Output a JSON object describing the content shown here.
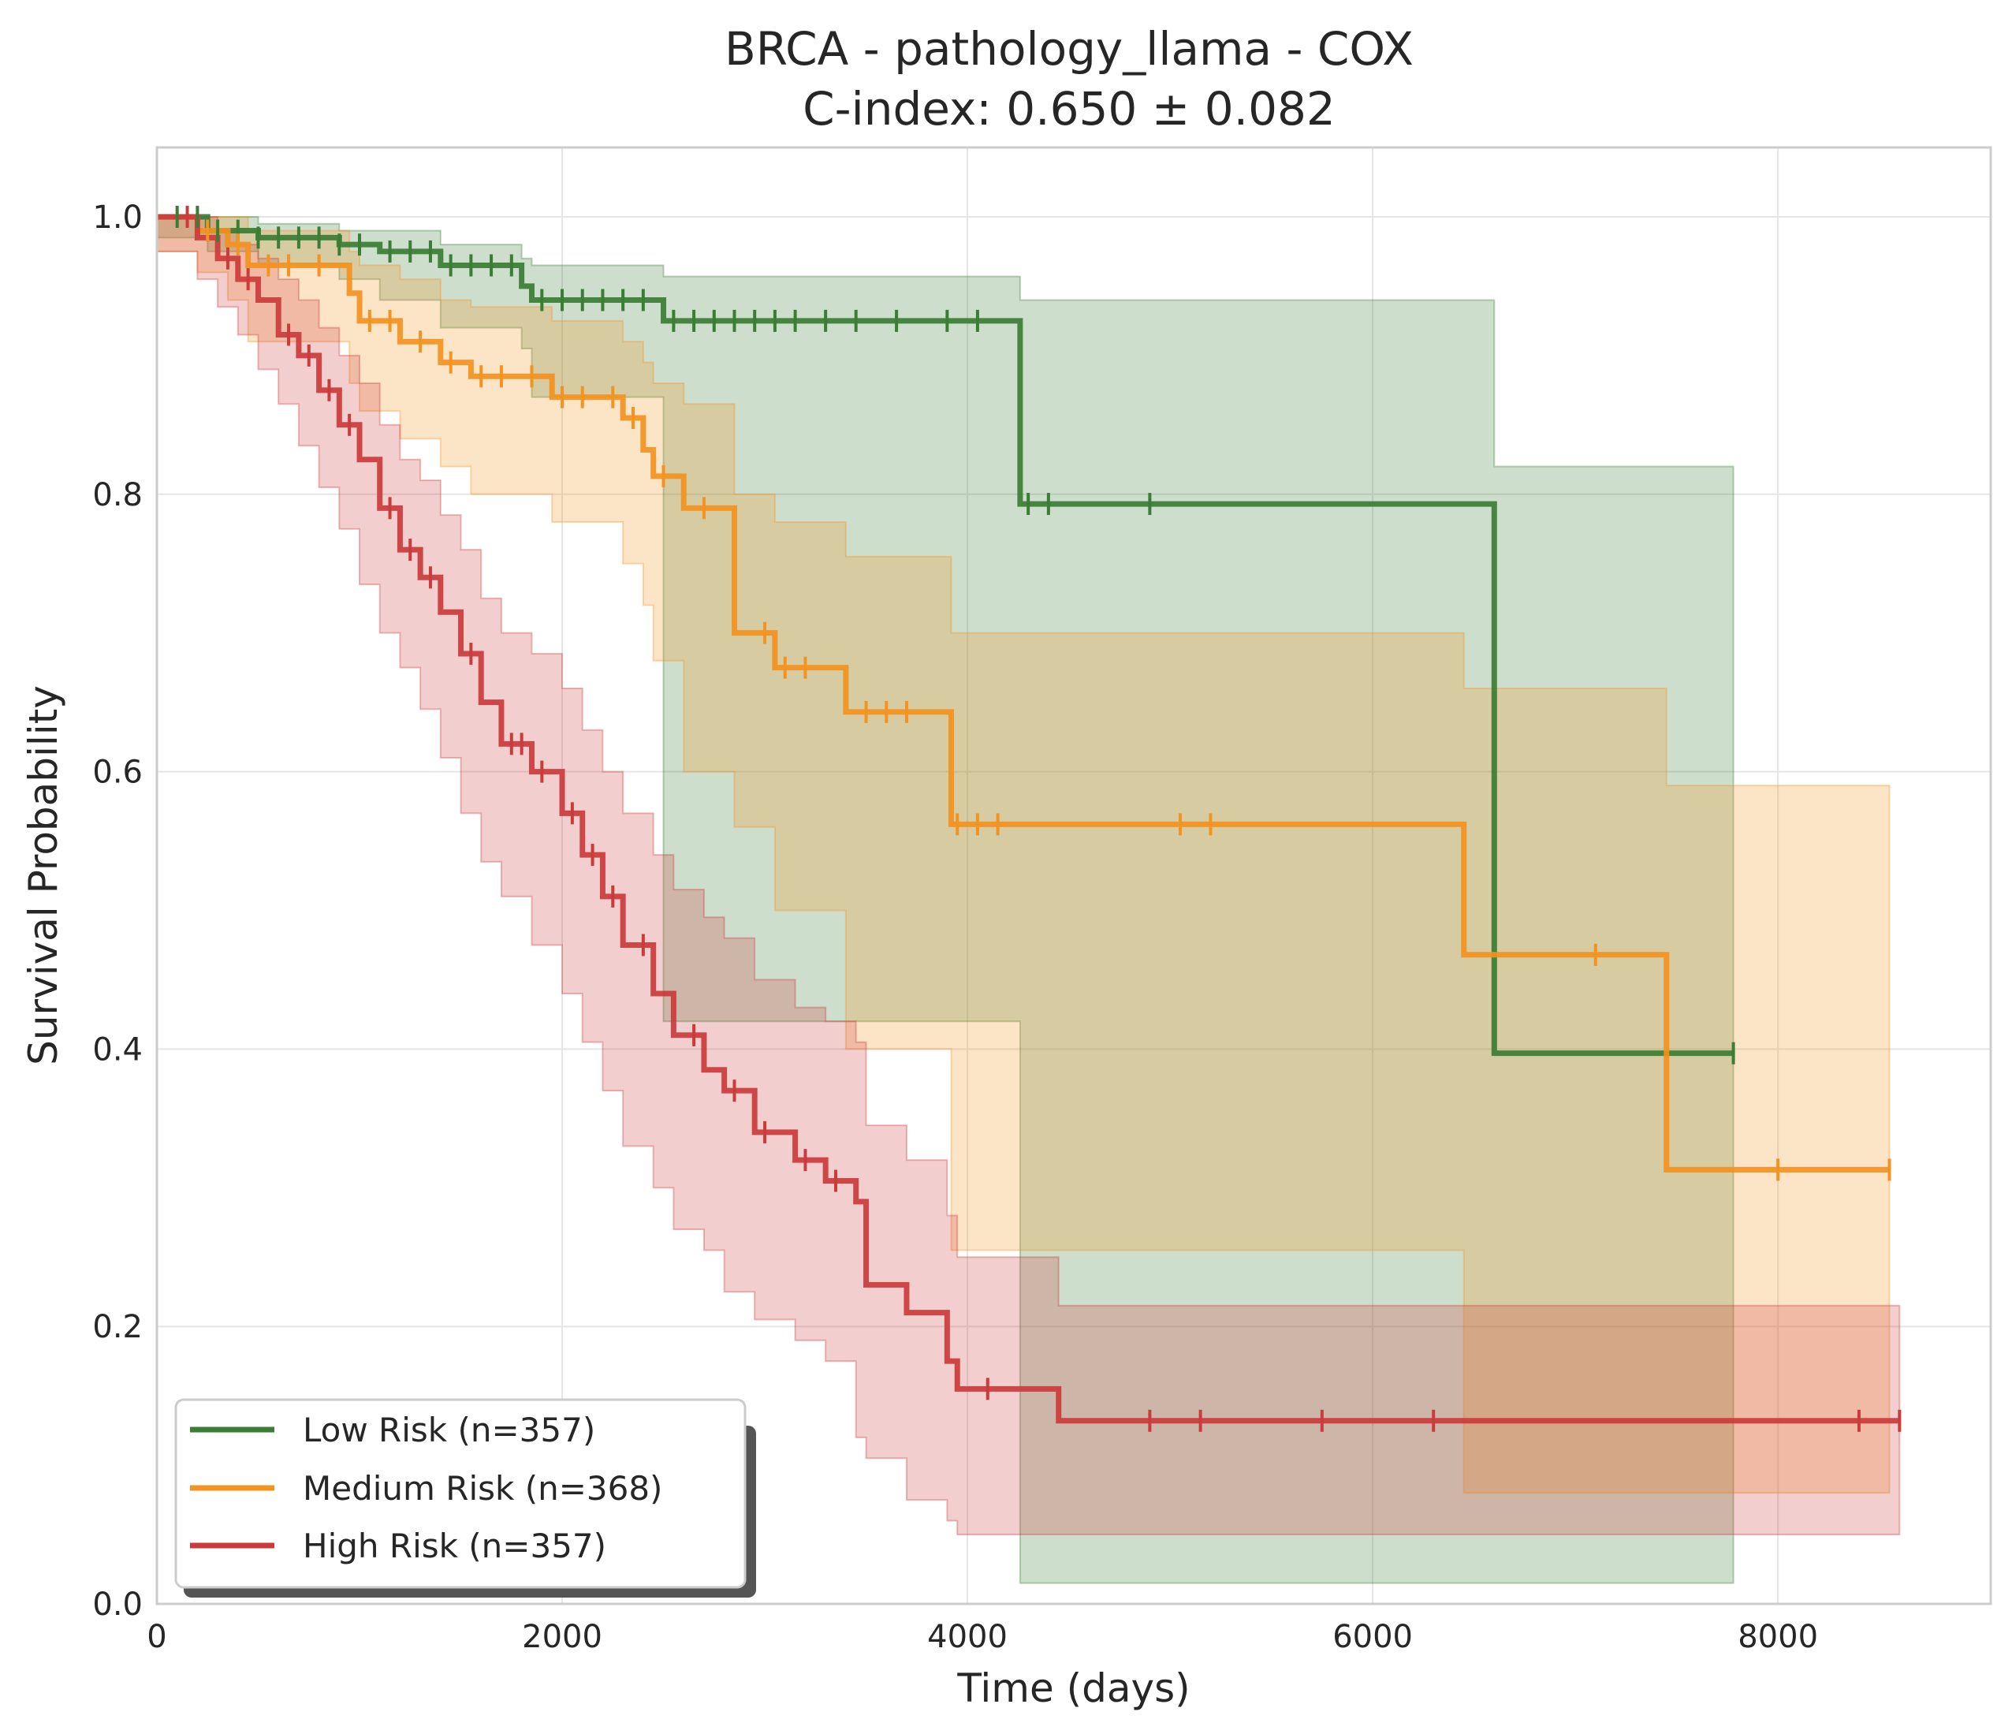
{
  "chart_data": {
    "type": "line",
    "subtype": "kaplan-meier",
    "title": "BRCA - pathology_llama - COX",
    "subtitle": "C-index: 0.650 ± 0.082",
    "xlabel": "Time (days)",
    "ylabel": "Survival Probability",
    "xlim": [
      0,
      9050
    ],
    "ylim": [
      0,
      1.05
    ],
    "xticks": [
      0,
      2000,
      4000,
      6000,
      8000
    ],
    "xtick_labels": [
      "0",
      "2000",
      "4000",
      "6000",
      "8000"
    ],
    "yticks": [
      0.0,
      0.2,
      0.4,
      0.6,
      0.8,
      1.0
    ],
    "ytick_labels": [
      "0.0",
      "0.2",
      "0.4",
      "0.6",
      "0.8",
      "1.0"
    ],
    "grid": true,
    "legend_position": "lower-left",
    "series": [
      {
        "name": "Low Risk (n=357)",
        "color": "#3a7d34",
        "steps": [
          [
            0,
            1.0
          ],
          [
            250,
            0.99
          ],
          [
            500,
            0.985
          ],
          [
            900,
            0.98
          ],
          [
            1100,
            0.975
          ],
          [
            1400,
            0.965
          ],
          [
            1800,
            0.95
          ],
          [
            1850,
            0.94
          ],
          [
            2500,
            0.925
          ],
          [
            4260,
            0.793
          ],
          [
            6600,
            0.397
          ],
          [
            7780,
            0.397
          ]
        ],
        "ci_lower": [
          [
            0,
            1.0
          ],
          [
            250,
            0.985
          ],
          [
            500,
            0.975
          ],
          [
            900,
            0.965
          ],
          [
            1100,
            0.955
          ],
          [
            1400,
            0.94
          ],
          [
            1800,
            0.92
          ],
          [
            1850,
            0.905
          ],
          [
            2500,
            0.87
          ],
          [
            4260,
            0.42
          ],
          [
            6600,
            0.015
          ],
          [
            7780,
            0.015
          ]
        ],
        "ci_upper": [
          [
            0,
            1.0
          ],
          [
            250,
            1.0
          ],
          [
            500,
            0.995
          ],
          [
            900,
            0.99
          ],
          [
            1100,
            0.99
          ],
          [
            1400,
            0.98
          ],
          [
            1800,
            0.97
          ],
          [
            1850,
            0.965
          ],
          [
            2500,
            0.957
          ],
          [
            4260,
            0.94
          ],
          [
            6600,
            0.82
          ],
          [
            7780,
            0.82
          ]
        ],
        "censor_times": [
          100,
          200,
          300,
          400,
          500,
          600,
          700,
          800,
          900,
          1000,
          1150,
          1250,
          1350,
          1450,
          1550,
          1650,
          1750,
          1900,
          2000,
          2100,
          2200,
          2300,
          2400,
          2550,
          2650,
          2750,
          2850,
          2950,
          3050,
          3150,
          3300,
          3450,
          3650,
          3900,
          4050,
          4300,
          4400,
          4900,
          7780
        ]
      },
      {
        "name": "Medium Risk (n=368)",
        "color": "#f39320",
        "steps": [
          [
            0,
            1.0
          ],
          [
            200,
            0.99
          ],
          [
            350,
            0.98
          ],
          [
            450,
            0.965
          ],
          [
            950,
            0.945
          ],
          [
            1000,
            0.925
          ],
          [
            1200,
            0.91
          ],
          [
            1400,
            0.895
          ],
          [
            1550,
            0.885
          ],
          [
            1950,
            0.87
          ],
          [
            2300,
            0.855
          ],
          [
            2400,
            0.832
          ],
          [
            2450,
            0.813
          ],
          [
            2600,
            0.79
          ],
          [
            2850,
            0.7
          ],
          [
            3050,
            0.675
          ],
          [
            3400,
            0.643
          ],
          [
            3920,
            0.562
          ],
          [
            6450,
            0.468
          ],
          [
            7450,
            0.313
          ],
          [
            8550,
            0.313
          ]
        ],
        "ci_lower": [
          [
            0,
            1.0
          ],
          [
            200,
            0.975
          ],
          [
            350,
            0.96
          ],
          [
            450,
            0.94
          ],
          [
            950,
            0.91
          ],
          [
            1000,
            0.88
          ],
          [
            1200,
            0.86
          ],
          [
            1400,
            0.84
          ],
          [
            1550,
            0.82
          ],
          [
            1950,
            0.8
          ],
          [
            2300,
            0.78
          ],
          [
            2400,
            0.75
          ],
          [
            2450,
            0.72
          ],
          [
            2600,
            0.68
          ],
          [
            2850,
            0.6
          ],
          [
            3050,
            0.56
          ],
          [
            3400,
            0.5
          ],
          [
            3920,
            0.4
          ],
          [
            6450,
            0.255
          ],
          [
            7450,
            0.08
          ],
          [
            8550,
            0.08
          ]
        ],
        "ci_upper": [
          [
            0,
            1.0
          ],
          [
            200,
            1.0
          ],
          [
            350,
            1.0
          ],
          [
            450,
            0.99
          ],
          [
            950,
            0.975
          ],
          [
            1000,
            0.965
          ],
          [
            1200,
            0.955
          ],
          [
            1400,
            0.94
          ],
          [
            1550,
            0.935
          ],
          [
            1950,
            0.925
          ],
          [
            2300,
            0.91
          ],
          [
            2400,
            0.895
          ],
          [
            2450,
            0.88
          ],
          [
            2600,
            0.865
          ],
          [
            2850,
            0.8
          ],
          [
            3050,
            0.78
          ],
          [
            3400,
            0.755
          ],
          [
            3920,
            0.7
          ],
          [
            6450,
            0.66
          ],
          [
            7450,
            0.59
          ],
          [
            8550,
            0.59
          ]
        ],
        "censor_times": [
          250,
          400,
          550,
          650,
          800,
          1050,
          1150,
          1300,
          1450,
          1600,
          1700,
          1850,
          2000,
          2100,
          2250,
          2350,
          2500,
          2700,
          3000,
          3100,
          3200,
          3500,
          3600,
          3700,
          3950,
          4050,
          4150,
          5050,
          5200,
          7100,
          8000,
          8550
        ]
      },
      {
        "name": "High Risk (n=357)",
        "color": "#cc3b3b",
        "steps": [
          [
            0,
            1.0
          ],
          [
            200,
            0.985
          ],
          [
            300,
            0.97
          ],
          [
            400,
            0.955
          ],
          [
            500,
            0.94
          ],
          [
            600,
            0.915
          ],
          [
            700,
            0.9
          ],
          [
            800,
            0.875
          ],
          [
            900,
            0.85
          ],
          [
            1000,
            0.825
          ],
          [
            1100,
            0.79
          ],
          [
            1200,
            0.76
          ],
          [
            1300,
            0.74
          ],
          [
            1400,
            0.715
          ],
          [
            1500,
            0.685
          ],
          [
            1600,
            0.65
          ],
          [
            1700,
            0.62
          ],
          [
            1850,
            0.6
          ],
          [
            2000,
            0.57
          ],
          [
            2100,
            0.54
          ],
          [
            2200,
            0.51
          ],
          [
            2300,
            0.475
          ],
          [
            2450,
            0.44
          ],
          [
            2550,
            0.41
          ],
          [
            2700,
            0.385
          ],
          [
            2800,
            0.37
          ],
          [
            2950,
            0.34
          ],
          [
            3150,
            0.32
          ],
          [
            3300,
            0.305
          ],
          [
            3450,
            0.29
          ],
          [
            3500,
            0.23
          ],
          [
            3700,
            0.21
          ],
          [
            3900,
            0.175
          ],
          [
            3950,
            0.155
          ],
          [
            4450,
            0.132
          ],
          [
            8600,
            0.132
          ]
        ],
        "ci_lower": [
          [
            0,
            1.0
          ],
          [
            200,
            0.975
          ],
          [
            300,
            0.955
          ],
          [
            400,
            0.935
          ],
          [
            500,
            0.915
          ],
          [
            600,
            0.89
          ],
          [
            700,
            0.865
          ],
          [
            800,
            0.835
          ],
          [
            900,
            0.805
          ],
          [
            1000,
            0.775
          ],
          [
            1100,
            0.735
          ],
          [
            1200,
            0.7
          ],
          [
            1300,
            0.675
          ],
          [
            1400,
            0.645
          ],
          [
            1500,
            0.61
          ],
          [
            1600,
            0.57
          ],
          [
            1700,
            0.535
          ],
          [
            1850,
            0.51
          ],
          [
            2000,
            0.475
          ],
          [
            2100,
            0.44
          ],
          [
            2200,
            0.405
          ],
          [
            2300,
            0.37
          ],
          [
            2450,
            0.33
          ],
          [
            2550,
            0.3
          ],
          [
            2700,
            0.27
          ],
          [
            2800,
            0.255
          ],
          [
            2950,
            0.225
          ],
          [
            3150,
            0.205
          ],
          [
            3300,
            0.19
          ],
          [
            3450,
            0.175
          ],
          [
            3500,
            0.12
          ],
          [
            3700,
            0.105
          ],
          [
            3900,
            0.075
          ],
          [
            3950,
            0.06
          ],
          [
            4450,
            0.05
          ],
          [
            8600,
            0.05
          ]
        ],
        "ci_upper": [
          [
            0,
            1.0
          ],
          [
            200,
            1.0
          ],
          [
            300,
            0.99
          ],
          [
            400,
            0.98
          ],
          [
            500,
            0.97
          ],
          [
            600,
            0.955
          ],
          [
            700,
            0.94
          ],
          [
            800,
            0.92
          ],
          [
            900,
            0.9
          ],
          [
            1000,
            0.88
          ],
          [
            1100,
            0.85
          ],
          [
            1200,
            0.825
          ],
          [
            1300,
            0.81
          ],
          [
            1400,
            0.785
          ],
          [
            1500,
            0.76
          ],
          [
            1600,
            0.725
          ],
          [
            1700,
            0.7
          ],
          [
            1850,
            0.685
          ],
          [
            2000,
            0.66
          ],
          [
            2100,
            0.63
          ],
          [
            2200,
            0.6
          ],
          [
            2300,
            0.57
          ],
          [
            2450,
            0.54
          ],
          [
            2550,
            0.515
          ],
          [
            2700,
            0.495
          ],
          [
            2800,
            0.48
          ],
          [
            2950,
            0.45
          ],
          [
            3150,
            0.43
          ],
          [
            3300,
            0.42
          ],
          [
            3450,
            0.405
          ],
          [
            3500,
            0.345
          ],
          [
            3700,
            0.32
          ],
          [
            3900,
            0.28
          ],
          [
            3950,
            0.25
          ],
          [
            4450,
            0.215
          ],
          [
            8600,
            0.215
          ]
        ],
        "censor_times": [
          150,
          350,
          450,
          650,
          750,
          850,
          950,
          1150,
          1250,
          1350,
          1550,
          1750,
          1800,
          1900,
          2050,
          2150,
          2250,
          2400,
          2650,
          2850,
          3000,
          3200,
          3350,
          4100,
          4900,
          5150,
          5750,
          6300,
          8400,
          8600
        ]
      }
    ]
  }
}
